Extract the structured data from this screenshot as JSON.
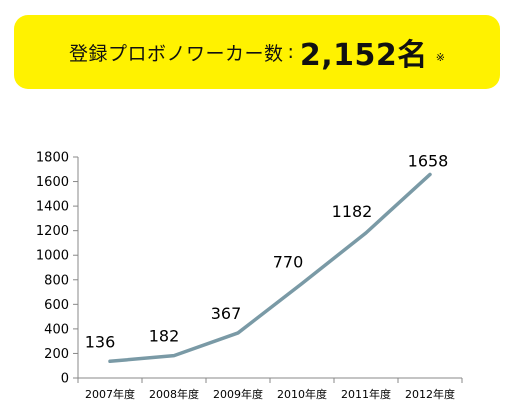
{
  "banner": {
    "label": "登録プロボノワーカー数",
    "colon": ":",
    "value": "2,152名",
    "note": "※",
    "background": "#fff200"
  },
  "chart_data": {
    "type": "line",
    "categories": [
      "2007年度",
      "2008年度",
      "2009年度",
      "2010年度",
      "2011年度",
      "2012年度"
    ],
    "series": [
      {
        "values": [
          136,
          182,
          367,
          770,
          1182,
          1658
        ]
      }
    ],
    "data_labels": [
      "136",
      "182",
      "367",
      "770",
      "1182",
      "1658"
    ],
    "y_ticks": [
      0,
      200,
      400,
      600,
      800,
      1000,
      1200,
      1400,
      1600,
      1800
    ],
    "ylim": [
      0,
      1800
    ],
    "grid": false,
    "legend": "none",
    "line_color": "#7a9aa6"
  }
}
